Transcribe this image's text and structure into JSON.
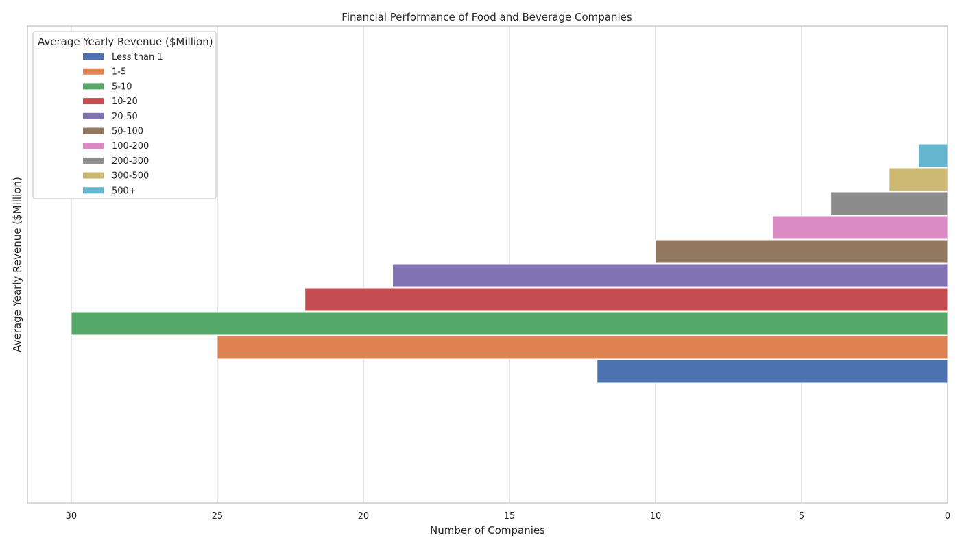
{
  "chart_data": {
    "type": "bar",
    "orientation": "horizontal",
    "x_axis_inverted": true,
    "title": "Financial Performance of Food and Beverage Companies",
    "xlabel": "Number of Companies",
    "ylabel": "Average Yearly Revenue ($Million)",
    "xlim": [
      31.5,
      0
    ],
    "x_ticks": [
      30,
      25,
      20,
      15,
      10,
      5,
      0
    ],
    "grid": "vertical",
    "legend": {
      "title": "Average Yearly Revenue ($Million)",
      "placement": "upper-left"
    },
    "categories": [
      "Less than 1",
      "1-5",
      "5-10",
      "10-20",
      "20-50",
      "50-100",
      "100-200",
      "200-300",
      "300-500",
      "500+"
    ],
    "values": [
      12,
      25,
      30,
      22,
      19,
      10,
      6,
      4,
      2,
      1
    ],
    "colors": [
      "#4c72b0",
      "#dd8452",
      "#55a868",
      "#c44e52",
      "#8172b3",
      "#937860",
      "#da8bc3",
      "#8c8c8c",
      "#ccb974",
      "#64b5cd"
    ],
    "frame_color": "#cccccc",
    "grid_color": "#cccccc"
  }
}
